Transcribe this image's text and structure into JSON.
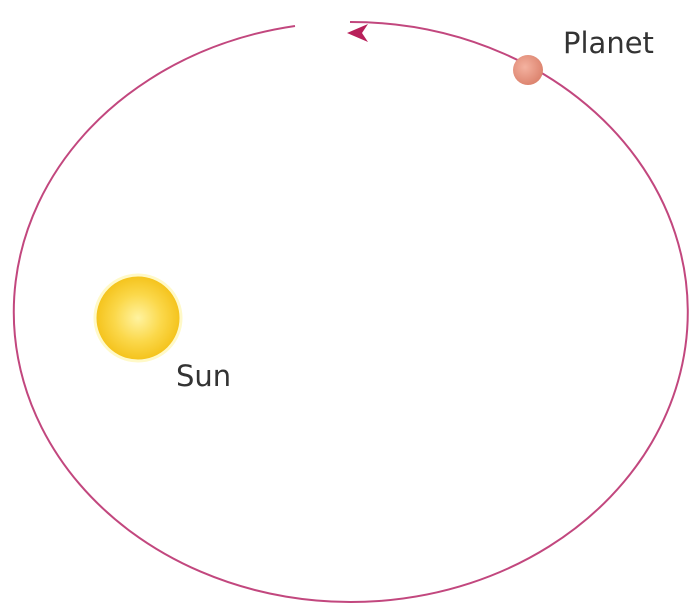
{
  "labels": {
    "planet": "Planet",
    "sun": "Sun"
  }
}
